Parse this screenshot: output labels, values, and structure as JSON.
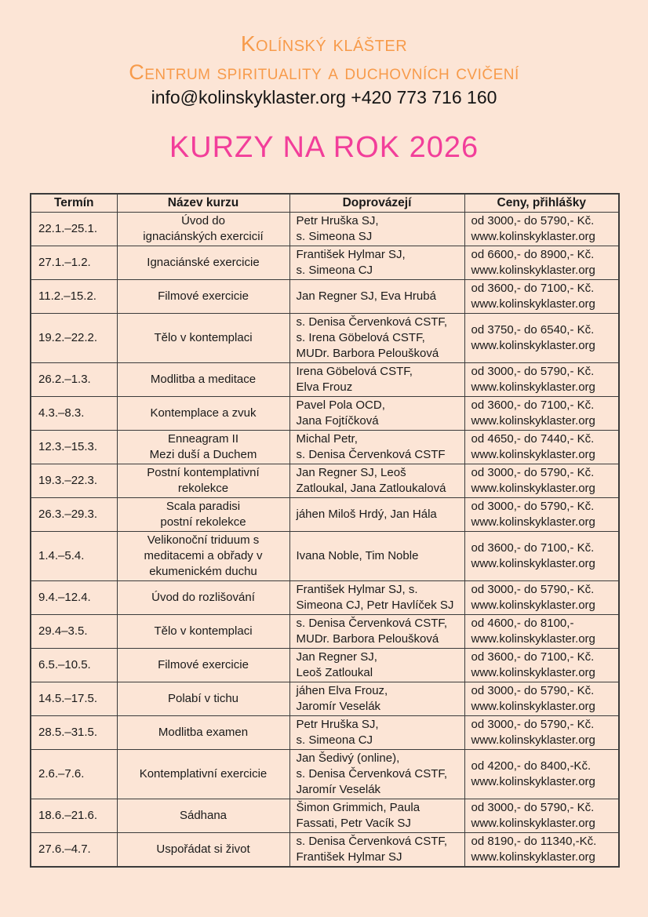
{
  "page": {
    "background_color": "#fce5d6",
    "accent_orange": "#f79b4b",
    "accent_pink": "#f23e9a",
    "border_color": "#3b3b3b"
  },
  "header": {
    "org_name": "Kolínský klášter",
    "org_subtitle": "Centrum spirituality a duchovních cvičení",
    "contact": "info@kolinskyklaster.org +420 773 716 160",
    "title": "KURZY NA ROK 2026"
  },
  "table": {
    "columns": [
      "Termín",
      "Název kurzu",
      "Doprovázejí",
      "Ceny, přihlášky"
    ],
    "rows": [
      {
        "termin": [
          "22.1.–25.1."
        ],
        "nazev": [
          "Úvod do",
          "ignaciánských exercicií"
        ],
        "doprovazeji": [
          "Petr Hruška SJ,",
          "s. Simeona SJ"
        ],
        "ceny": [
          "od 3000,- do 5790,- Kč.",
          "www.kolinskyklaster.org"
        ]
      },
      {
        "termin": [
          "27.1.–1.2."
        ],
        "nazev": [
          "Ignaciánské exercicie"
        ],
        "doprovazeji": [
          "František Hylmar SJ,",
          "s. Simeona CJ"
        ],
        "ceny": [
          "od 6600,- do 8900,- Kč.",
          "www.kolinskyklaster.org"
        ]
      },
      {
        "termin": [
          "11.2.–15.2."
        ],
        "nazev": [
          "Filmové exercicie"
        ],
        "doprovazeji": [
          "Jan Regner SJ, Eva Hrubá"
        ],
        "ceny": [
          "od 3600,- do 7100,- Kč.",
          "www.kolinskyklaster.org"
        ]
      },
      {
        "termin": [
          "19.2.–22.2."
        ],
        "nazev": [
          "Tělo v kontemplaci"
        ],
        "doprovazeji": [
          "s. Denisa Červenková CSTF,",
          "s. Irena Göbelová CSTF,",
          "MUDr. Barbora Peloušková"
        ],
        "ceny": [
          "od 3750,- do 6540,- Kč.",
          "www.kolinskyklaster.org"
        ]
      },
      {
        "termin": [
          "26.2.–1.3."
        ],
        "nazev": [
          "Modlitba a meditace"
        ],
        "doprovazeji": [
          "Irena Göbelová CSTF,",
          "Elva Frouz"
        ],
        "ceny": [
          "od 3000,- do 5790,- Kč.",
          "www.kolinskyklaster.org"
        ]
      },
      {
        "termin": [
          "4.3.–8.3."
        ],
        "nazev": [
          "Kontemplace a zvuk"
        ],
        "doprovazeji": [
          "Pavel Pola OCD,",
          "Jana Fojtíčková"
        ],
        "ceny": [
          "od 3600,- do 7100,- Kč.",
          "www.kolinskyklaster.org"
        ]
      },
      {
        "termin": [
          "12.3.–15.3."
        ],
        "nazev": [
          "Enneagram II",
          "Mezi duší a Duchem"
        ],
        "doprovazeji": [
          "Michal Petr,",
          "s. Denisa Červenková CSTF"
        ],
        "ceny": [
          "od 4650,- do 7440,- Kč.",
          "www.kolinskyklaster.org"
        ]
      },
      {
        "termin": [
          "19.3.–22.3."
        ],
        "nazev": [
          "Postní kontemplativní",
          "rekolekce"
        ],
        "doprovazeji": [
          "Jan Regner SJ, Leoš",
          "Zatloukal, Jana Zatloukalová"
        ],
        "ceny": [
          "od 3000,- do 5790,- Kč.",
          "www.kolinskyklaster.org"
        ]
      },
      {
        "termin": [
          "26.3.–29.3."
        ],
        "nazev": [
          "Scala paradisi",
          "postní rekolekce"
        ],
        "doprovazeji": [
          "jáhen Miloš Hrdý, Jan Hála"
        ],
        "ceny": [
          "od 3000,- do 5790,- Kč.",
          "www.kolinskyklaster.org"
        ]
      },
      {
        "termin": [
          "1.4.–5.4."
        ],
        "nazev": [
          "Velikonoční triduum s",
          "meditacemi a obřady v",
          "ekumenickém duchu"
        ],
        "doprovazeji": [
          "Ivana Noble, Tim Noble"
        ],
        "ceny": [
          "od 3600,- do 7100,- Kč.",
          "www.kolinskyklaster.org"
        ]
      },
      {
        "termin": [
          "9.4.–12.4."
        ],
        "nazev": [
          "Úvod do rozlišování"
        ],
        "doprovazeji": [
          "František Hylmar SJ, s.",
          "Simeona CJ, Petr Havlíček SJ"
        ],
        "ceny": [
          "od 3000,- do 5790,- Kč.",
          "www.kolinskyklaster.org"
        ]
      },
      {
        "termin": [
          "29.4–3.5."
        ],
        "nazev": [
          "Tělo v kontemplaci"
        ],
        "doprovazeji": [
          "s. Denisa Červenková CSTF,",
          "MUDr. Barbora Peloušková"
        ],
        "ceny": [
          "od 4600,- do 8100,-",
          "www.kolinskyklaster.org"
        ]
      },
      {
        "termin": [
          "6.5.–10.5."
        ],
        "nazev": [
          "Filmové exercicie"
        ],
        "doprovazeji": [
          "Jan Regner SJ,",
          "Leoš Zatloukal"
        ],
        "ceny": [
          "od 3600,- do 7100,- Kč.",
          "www.kolinskyklaster.org"
        ]
      },
      {
        "termin": [
          "14.5.–17.5."
        ],
        "nazev": [
          "Polabí v tichu"
        ],
        "doprovazeji": [
          "jáhen Elva Frouz,",
          "Jaromír Veselák"
        ],
        "ceny": [
          "od 3000,- do 5790,- Kč.",
          "www.kolinskyklaster.org"
        ]
      },
      {
        "termin": [
          "28.5.–31.5."
        ],
        "nazev": [
          "Modlitba examen"
        ],
        "doprovazeji": [
          "Petr Hruška SJ,",
          "s. Simeona CJ"
        ],
        "ceny": [
          "od 3000,- do 5790,- Kč.",
          "www.kolinskyklaster.org"
        ]
      },
      {
        "termin": [
          "2.6.–7.6."
        ],
        "nazev": [
          "Kontemplativní exercicie"
        ],
        "doprovazeji": [
          "Jan Šedivý (online),",
          "s. Denisa Červenková CSTF,",
          "Jaromír Veselák"
        ],
        "ceny": [
          "od 4200,- do 8400,-Kč.",
          "www.kolinskyklaster.org"
        ]
      },
      {
        "termin": [
          "18.6.–21.6."
        ],
        "nazev": [
          "Sádhana"
        ],
        "doprovazeji": [
          "Šimon Grimmich, Paula",
          "Fassati, Petr Vacík SJ"
        ],
        "ceny": [
          "od 3000,- do 5790,- Kč.",
          "www.kolinskyklaster.org"
        ]
      },
      {
        "termin": [
          "27.6.–4.7."
        ],
        "nazev": [
          "Uspořádat si život"
        ],
        "doprovazeji": [
          "s. Denisa Červenková CSTF,",
          "František Hylmar SJ"
        ],
        "ceny": [
          "od 8190,- do 11340,-Kč.",
          "www.kolinskyklaster.org"
        ]
      }
    ]
  }
}
